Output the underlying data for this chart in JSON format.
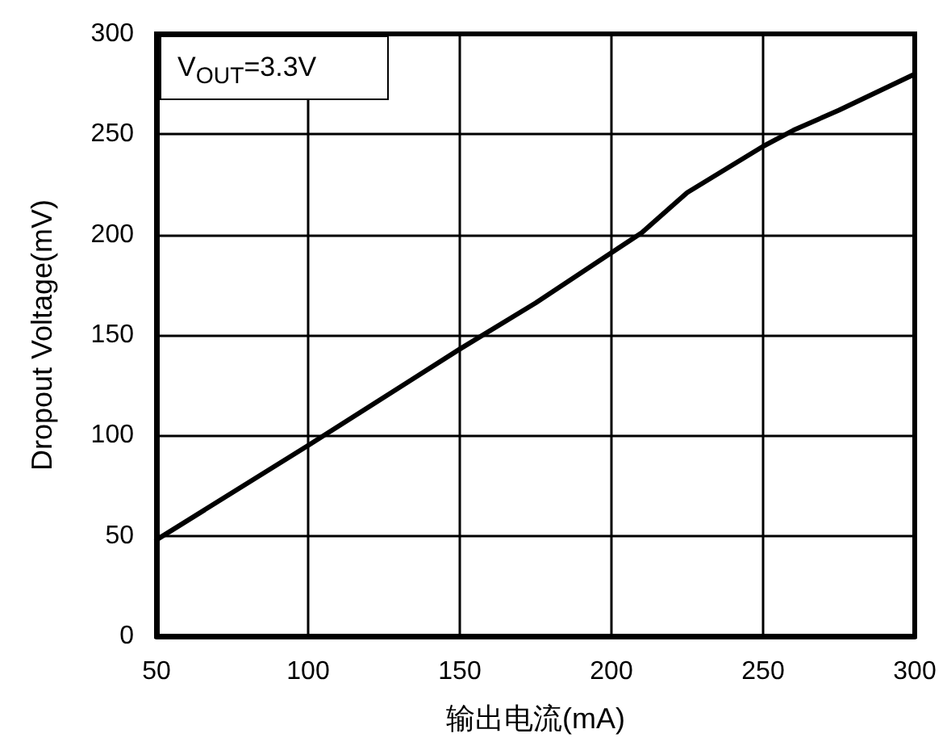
{
  "chart_data": {
    "type": "line",
    "xlabel": "输出电流(mA)",
    "ylabel": "Dropout Voltage(mV)",
    "annotations": [
      "V$_{OUT}$=3.3V"
    ],
    "x": [
      50,
      100,
      150,
      175,
      200,
      210,
      225,
      250,
      260,
      275,
      300
    ],
    "series": [
      {
        "color": "#000000",
        "values": [
          48,
          95,
          143,
          166,
          191,
          201,
          221,
          244,
          252,
          262,
          280
        ]
      }
    ],
    "xlim": [
      50,
      300
    ],
    "xticks": [
      50,
      100,
      150,
      200,
      250,
      300
    ],
    "ylim": [
      0,
      300
    ],
    "yticks": [
      0,
      50,
      100,
      150,
      200,
      250,
      300
    ],
    "grid": true,
    "marker": "none",
    "line_style": "solid"
  }
}
